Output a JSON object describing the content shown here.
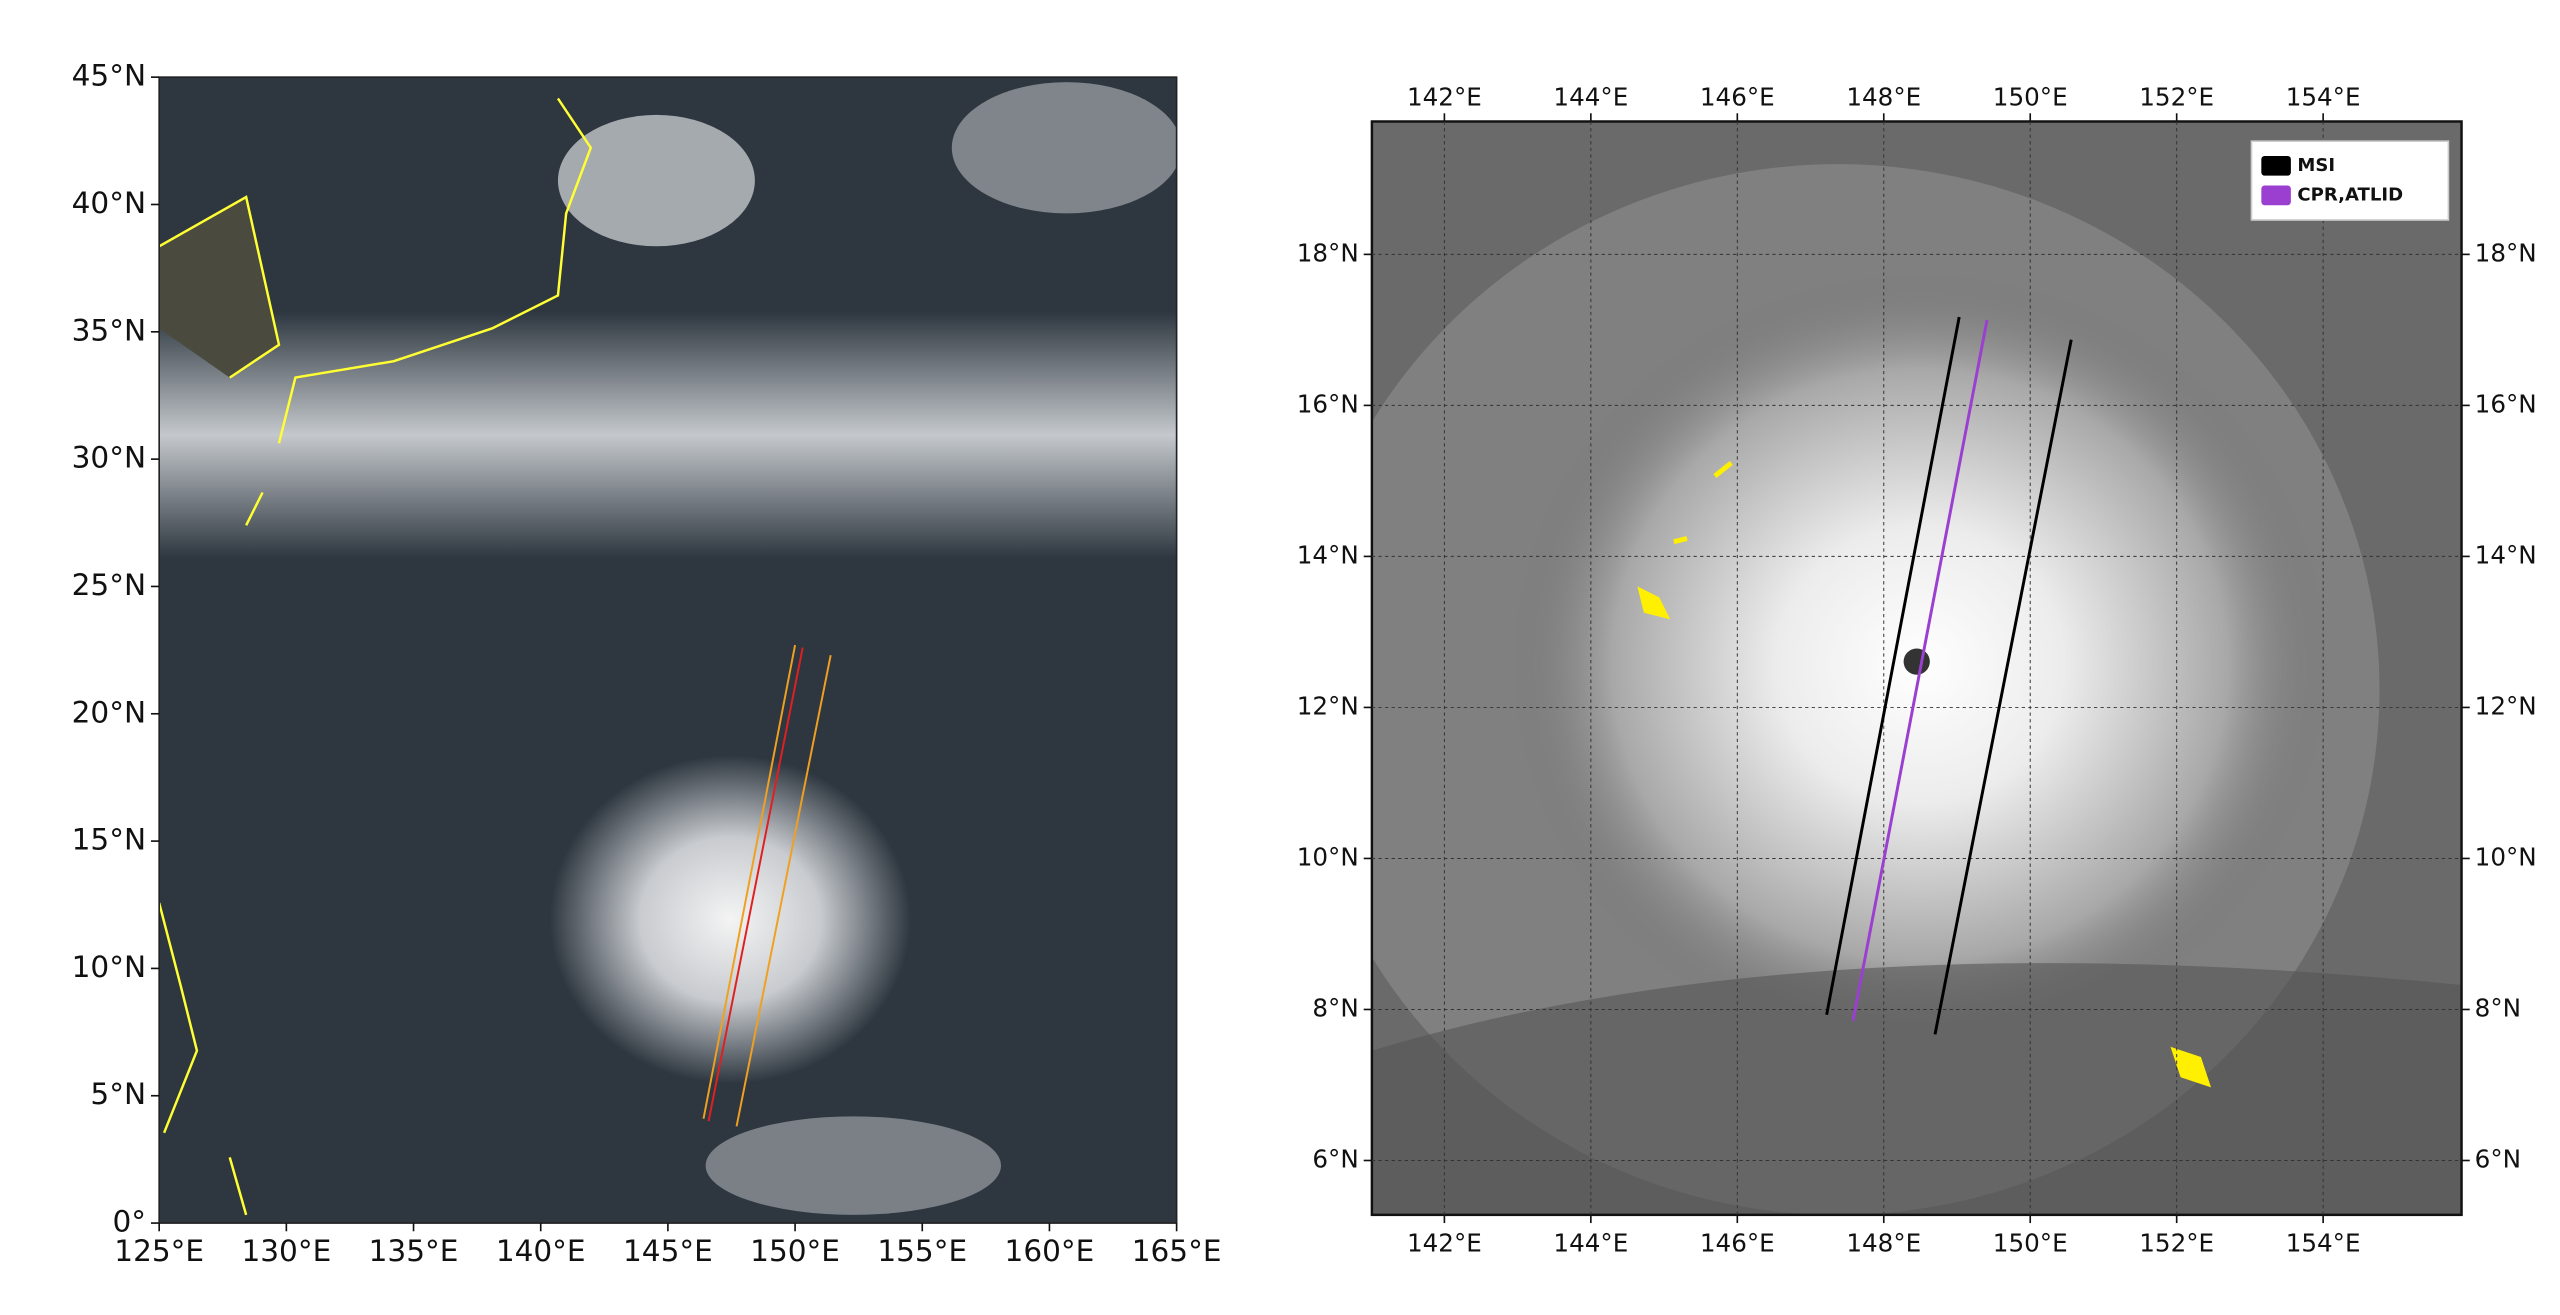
{
  "chart_data": [
    {
      "type": "map",
      "xlim": [
        125,
        165
      ],
      "ylim": [
        0,
        45
      ],
      "xticks": [
        {
          "value": 125,
          "label": "125°E"
        },
        {
          "value": 130,
          "label": "130°E"
        },
        {
          "value": 135,
          "label": "135°E"
        },
        {
          "value": 140,
          "label": "140°E"
        },
        {
          "value": 145,
          "label": "145°E"
        },
        {
          "value": 150,
          "label": "150°E"
        },
        {
          "value": 155,
          "label": "155°E"
        },
        {
          "value": 160,
          "label": "160°E"
        },
        {
          "value": 165,
          "label": "165°E"
        }
      ],
      "yticks": [
        {
          "value": 0,
          "label": "0°"
        },
        {
          "value": 5,
          "label": "5°N"
        },
        {
          "value": 10,
          "label": "10°N"
        },
        {
          "value": 15,
          "label": "15°N"
        },
        {
          "value": 20,
          "label": "20°N"
        },
        {
          "value": 25,
          "label": "25°N"
        },
        {
          "value": 30,
          "label": "30°N"
        },
        {
          "value": 35,
          "label": "35°N"
        },
        {
          "value": 40,
          "label": "40°N"
        },
        {
          "value": 45,
          "label": "45°N"
        }
      ],
      "grid": false,
      "series": [
        {
          "color": "#f0a020",
          "x": [
            146.4,
            150.0,
            null,
            147.7,
            151.4
          ],
          "y": [
            4.1,
            22.7,
            null,
            3.8,
            22.3
          ]
        },
        {
          "color": "#e02020",
          "x": [
            146.6,
            150.3
          ],
          "y": [
            4.0,
            22.6
          ]
        }
      ]
    },
    {
      "type": "map",
      "xlim": [
        141.01,
        155.89
      ],
      "ylim": [
        5.28,
        19.76
      ],
      "xticks": [
        {
          "value": 142,
          "label": "142°E"
        },
        {
          "value": 144,
          "label": "144°E"
        },
        {
          "value": 146,
          "label": "146°E"
        },
        {
          "value": 148,
          "label": "148°E"
        },
        {
          "value": 150,
          "label": "150°E"
        },
        {
          "value": 152,
          "label": "152°E"
        },
        {
          "value": 154,
          "label": "154°E"
        }
      ],
      "yticks": [
        {
          "value": 6,
          "label": "6°N"
        },
        {
          "value": 8,
          "label": "8°N"
        },
        {
          "value": 10,
          "label": "10°N"
        },
        {
          "value": 12,
          "label": "12°N"
        },
        {
          "value": 14,
          "label": "14°N"
        },
        {
          "value": 16,
          "label": "16°N"
        },
        {
          "value": 18,
          "label": "18°N"
        }
      ],
      "grid": true,
      "legend": "upper right",
      "series": [
        {
          "name": "MSI",
          "color": "#000000",
          "x": [
            147.22,
            149.03,
            null,
            148.7,
            150.56
          ],
          "y": [
            7.93,
            17.17,
            null,
            7.67,
            16.87
          ]
        },
        {
          "name": "CPR,ATLID",
          "color": "#9b3fd1",
          "x": [
            147.58,
            149.41
          ],
          "y": [
            7.85,
            17.13
          ]
        }
      ]
    }
  ]
}
